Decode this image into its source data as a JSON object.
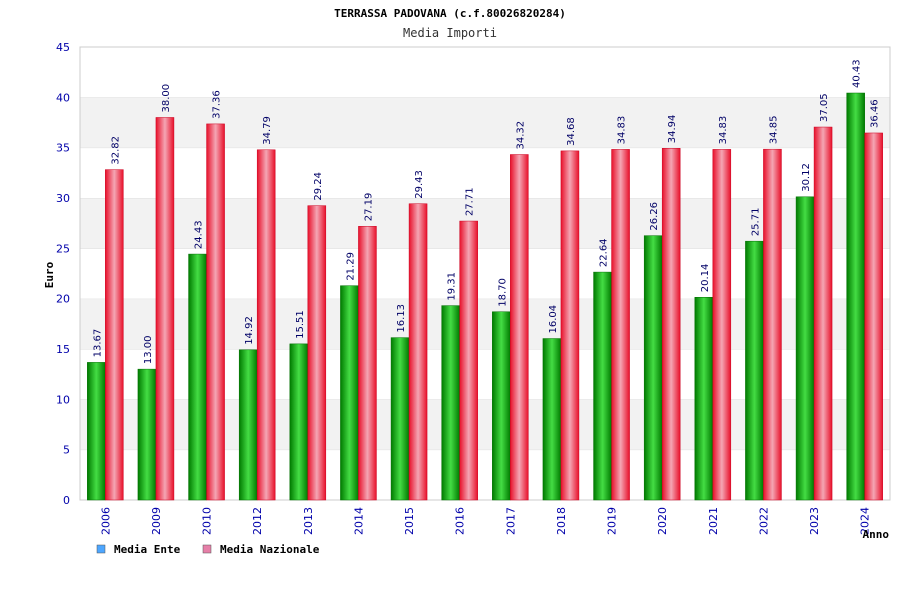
{
  "header": {
    "title": "TERRASSA PADOVANA (c.f.80026820284)",
    "subtitle": "Media Importi"
  },
  "colors": {
    "ente": "#00a000",
    "ente_light": "#44dd44",
    "nazionale": "#ee2233",
    "nazionale_light": "#f4a6b4",
    "axis_text": "#0000aa",
    "grid_band": "#f2f2f2",
    "legend_ente": "#4da6ff",
    "legend_nazionale": "#e67fa8"
  },
  "chart_data": {
    "type": "bar",
    "title": "TERRASSA PADOVANA (c.f.80026820284)",
    "subtitle": "Media Importi",
    "xlabel": "Anno",
    "ylabel": "Euro",
    "ylim": [
      0,
      45
    ],
    "yticks": [
      "0",
      "5",
      "10",
      "15",
      "20",
      "25",
      "30",
      "35",
      "40",
      "45"
    ],
    "grid": true,
    "legend_position": "bottom-left",
    "categories": [
      "2006",
      "2009",
      "2010",
      "2012",
      "2013",
      "2014",
      "2015",
      "2016",
      "2017",
      "2018",
      "2019",
      "2020",
      "2021",
      "2022",
      "2023",
      "2024"
    ],
    "series": [
      {
        "name": "Media Ente",
        "values": [
          13.67,
          13.0,
          24.43,
          14.92,
          15.51,
          21.29,
          16.13,
          19.31,
          18.7,
          16.04,
          22.64,
          26.26,
          20.14,
          25.71,
          30.12,
          40.43
        ],
        "labels": [
          "13.67",
          "13.00",
          "24.43",
          "14.92",
          "15.51",
          "21.29",
          "16.13",
          "19.31",
          "18.70",
          "16.04",
          "22.64",
          "26.26",
          "20.14",
          "25.71",
          "30.12",
          "40.43"
        ]
      },
      {
        "name": "Media Nazionale",
        "values": [
          32.82,
          38.0,
          37.36,
          34.79,
          29.24,
          27.19,
          29.43,
          27.71,
          34.32,
          34.68,
          34.83,
          34.94,
          34.83,
          34.85,
          37.05,
          36.46
        ],
        "labels": [
          "32.82",
          "38.00",
          "37.36",
          "34.79",
          "29.24",
          "27.19",
          "29.43",
          "27.71",
          "34.32",
          "34.68",
          "34.83",
          "34.94",
          "34.83",
          "34.85",
          "37.05",
          "36.46"
        ]
      }
    ]
  }
}
